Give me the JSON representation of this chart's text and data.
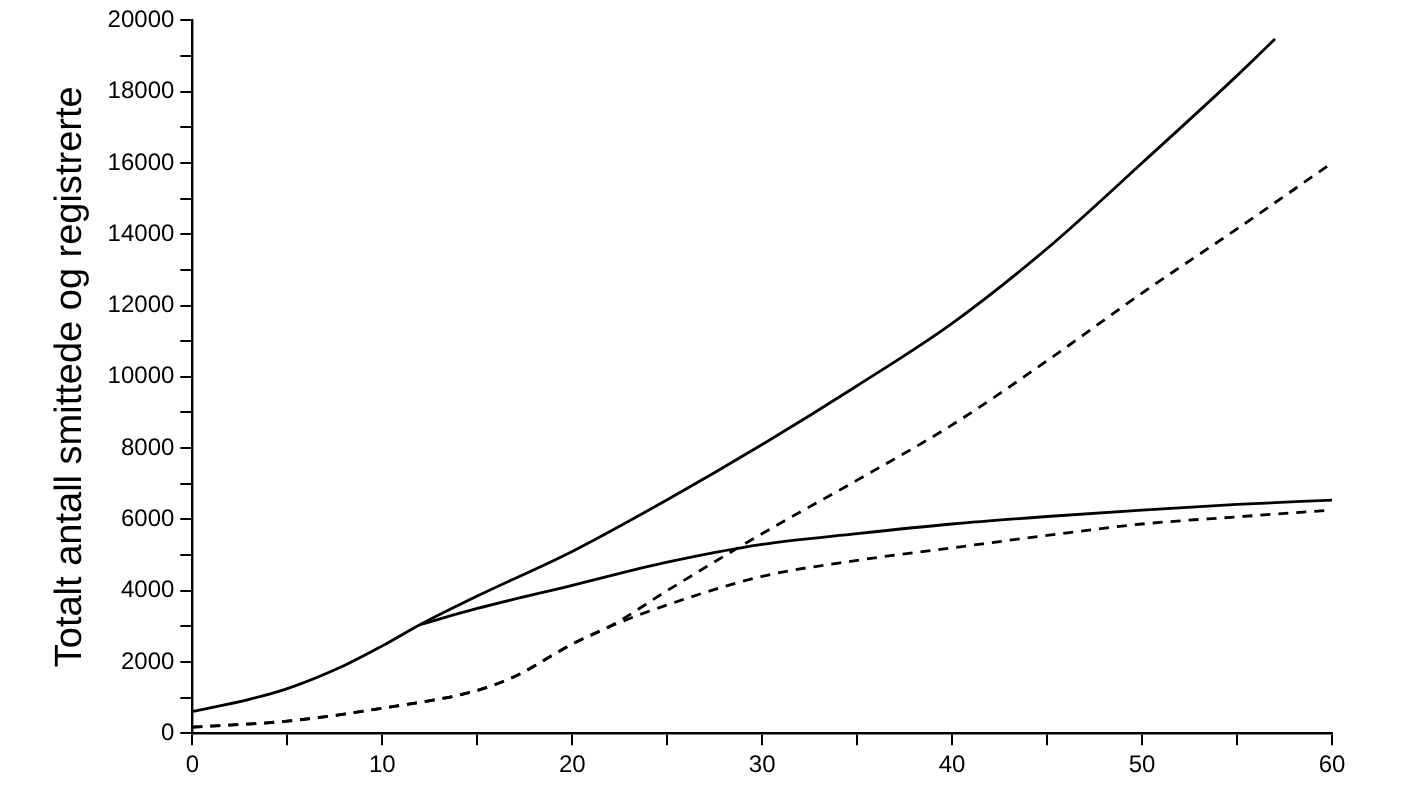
{
  "chart_data": {
    "type": "line",
    "ylabel": "Totalt antall smittede og registrerte",
    "xlim": [
      0,
      60
    ],
    "ylim": [
      0,
      20000
    ],
    "xticks": [
      0,
      {
        "value": 5,
        "label": null
      },
      10,
      {
        "value": 15,
        "label": null
      },
      20,
      {
        "value": 25,
        "label": null
      },
      30,
      {
        "value": 35,
        "label": null
      },
      40,
      {
        "value": 45,
        "label": null
      },
      50,
      {
        "value": 55,
        "label": null
      },
      60
    ],
    "yticks": [
      0,
      {
        "value": 1000,
        "label": null
      },
      2000,
      {
        "value": 3000,
        "label": null
      },
      4000,
      {
        "value": 5000,
        "label": null
      },
      6000,
      {
        "value": 7000,
        "label": null
      },
      8000,
      {
        "value": 9000,
        "label": null
      },
      10000,
      {
        "value": 11000,
        "label": null
      },
      12000,
      {
        "value": 13000,
        "label": null
      },
      14000,
      {
        "value": 15000,
        "label": null
      },
      16000,
      {
        "value": 17000,
        "label": null
      },
      18000,
      {
        "value": 19000,
        "label": null
      },
      20000
    ],
    "grid": false,
    "legend": false,
    "marker": "none",
    "series": [
      {
        "color": "#000000",
        "line_style": "solid",
        "x": [
          0,
          3,
          5,
          8,
          10,
          12,
          15,
          20,
          25,
          30,
          35,
          40,
          45,
          50,
          55,
          57
        ],
        "values": [
          610,
          950,
          1250,
          1900,
          2450,
          3050,
          3850,
          5100,
          6550,
          8100,
          9750,
          11500,
          13600,
          16000,
          18450,
          19480
        ]
      },
      {
        "color": "#000000",
        "line_style": "solid",
        "x": [
          12,
          15,
          20,
          25,
          30,
          35,
          40,
          45,
          50,
          55,
          60
        ],
        "values": [
          3050,
          3500,
          4150,
          4800,
          5300,
          5600,
          5870,
          6080,
          6260,
          6420,
          6540
        ]
      },
      {
        "color": "#000000",
        "line_style": "dashed",
        "x": [
          0,
          5,
          10,
          15,
          17,
          20,
          22,
          25,
          30,
          35,
          40,
          45,
          50,
          55,
          60
        ],
        "values": [
          170,
          340,
          700,
          1200,
          1600,
          2500,
          3000,
          4000,
          5600,
          7100,
          8650,
          10450,
          12350,
          14150,
          16000
        ]
      },
      {
        "color": "#000000",
        "line_style": "dashed",
        "x": [
          0,
          5,
          10,
          15,
          17,
          20,
          22,
          25,
          30,
          35,
          40,
          45,
          50,
          55,
          60
        ],
        "values": [
          170,
          340,
          700,
          1200,
          1600,
          2500,
          3000,
          3600,
          4400,
          4850,
          5200,
          5550,
          5870,
          6070,
          6260
        ]
      }
    ]
  }
}
